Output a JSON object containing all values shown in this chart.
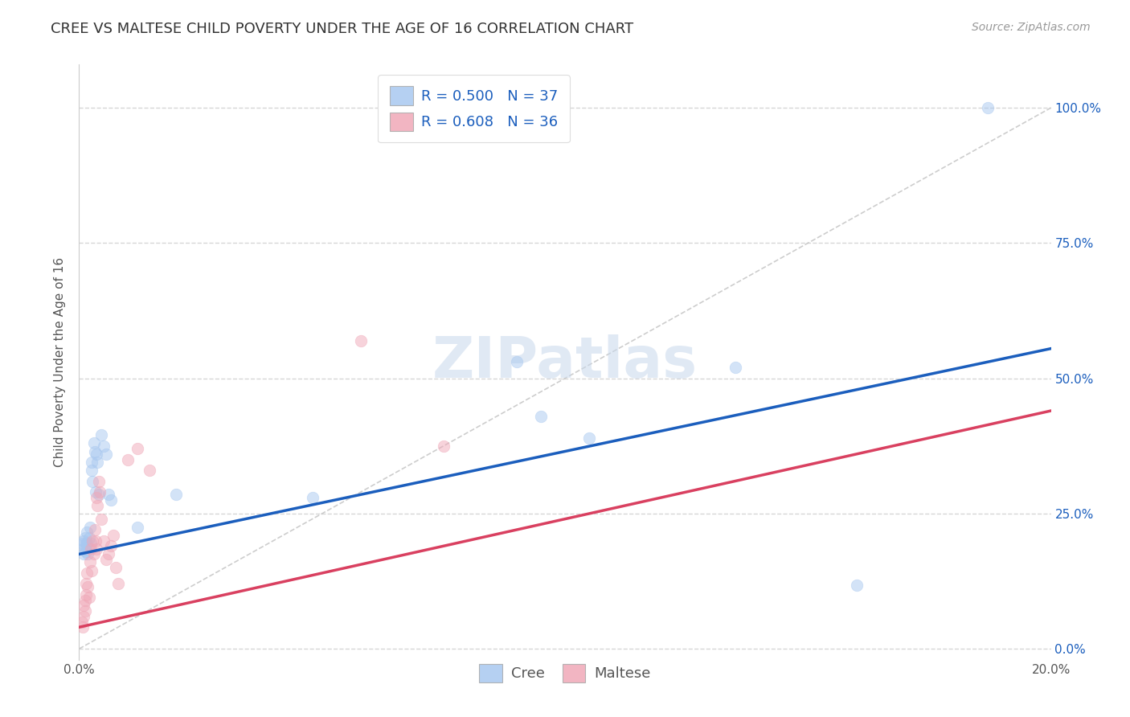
{
  "title": "CREE VS MALTESE CHILD POVERTY UNDER THE AGE OF 16 CORRELATION CHART",
  "source": "Source: ZipAtlas.com",
  "ylabel": "Child Poverty Under the Age of 16",
  "cree_R": 0.5,
  "cree_N": 37,
  "maltese_R": 0.608,
  "maltese_N": 36,
  "xlim": [
    0.0,
    0.2
  ],
  "ylim": [
    -0.02,
    1.08
  ],
  "yticks": [
    0.0,
    0.25,
    0.5,
    0.75,
    1.0
  ],
  "ytick_labels": [
    "0.0%",
    "25.0%",
    "50.0%",
    "75.0%",
    "100.0%"
  ],
  "xticks": [
    0.0,
    0.05,
    0.1,
    0.15,
    0.2
  ],
  "xtick_labels": [
    "0.0%",
    "",
    "",
    "",
    "20.0%"
  ],
  "cree_color": "#A8C8F0",
  "maltese_color": "#F0A8B8",
  "cree_line_color": "#1B5EBD",
  "maltese_line_color": "#D94060",
  "ref_line_color": "#C8C8C8",
  "background_color": "#FFFFFF",
  "grid_color": "#CCCCCC",
  "title_color": "#333333",
  "label_color": "#555555",
  "blue_text_color": "#1B5EBD",
  "cree_x": [
    0.0008,
    0.0008,
    0.001,
    0.001,
    0.0012,
    0.0012,
    0.0014,
    0.0015,
    0.0016,
    0.0016,
    0.0018,
    0.002,
    0.0022,
    0.0024,
    0.0025,
    0.0026,
    0.0028,
    0.003,
    0.0032,
    0.0034,
    0.0036,
    0.0038,
    0.004,
    0.0045,
    0.005,
    0.0055,
    0.006,
    0.0065,
    0.012,
    0.02,
    0.048,
    0.09,
    0.095,
    0.105,
    0.135,
    0.16,
    0.187
  ],
  "cree_y": [
    0.195,
    0.185,
    0.2,
    0.175,
    0.205,
    0.185,
    0.195,
    0.18,
    0.215,
    0.195,
    0.175,
    0.205,
    0.225,
    0.195,
    0.345,
    0.33,
    0.31,
    0.38,
    0.365,
    0.29,
    0.36,
    0.345,
    0.285,
    0.395,
    0.375,
    0.36,
    0.285,
    0.275,
    0.225,
    0.285,
    0.28,
    0.53,
    0.43,
    0.39,
    0.52,
    0.118,
    1.0
  ],
  "maltese_x": [
    0.0006,
    0.0008,
    0.001,
    0.001,
    0.0012,
    0.0012,
    0.0014,
    0.0015,
    0.0016,
    0.0018,
    0.002,
    0.0022,
    0.0024,
    0.0026,
    0.0028,
    0.003,
    0.0032,
    0.0034,
    0.0035,
    0.0036,
    0.0038,
    0.004,
    0.0042,
    0.0045,
    0.005,
    0.0055,
    0.006,
    0.0065,
    0.007,
    0.0075,
    0.008,
    0.01,
    0.012,
    0.0145,
    0.058,
    0.075
  ],
  "maltese_y": [
    0.05,
    0.04,
    0.08,
    0.06,
    0.09,
    0.07,
    0.12,
    0.1,
    0.14,
    0.115,
    0.095,
    0.16,
    0.185,
    0.145,
    0.2,
    0.175,
    0.22,
    0.2,
    0.185,
    0.28,
    0.265,
    0.31,
    0.29,
    0.24,
    0.2,
    0.165,
    0.175,
    0.19,
    0.21,
    0.15,
    0.12,
    0.35,
    0.37,
    0.33,
    0.57,
    0.375
  ],
  "cree_line_x0": 0.0,
  "cree_line_y0": 0.175,
  "cree_line_x1": 0.2,
  "cree_line_y1": 0.555,
  "maltese_line_x0": 0.0,
  "maltese_line_y0": 0.04,
  "maltese_line_x1": 0.2,
  "maltese_line_y1": 0.44,
  "marker_size": 110,
  "marker_alpha": 0.5,
  "title_fontsize": 13,
  "axis_label_fontsize": 11,
  "tick_fontsize": 11,
  "legend_fontsize": 13,
  "source_fontsize": 10
}
